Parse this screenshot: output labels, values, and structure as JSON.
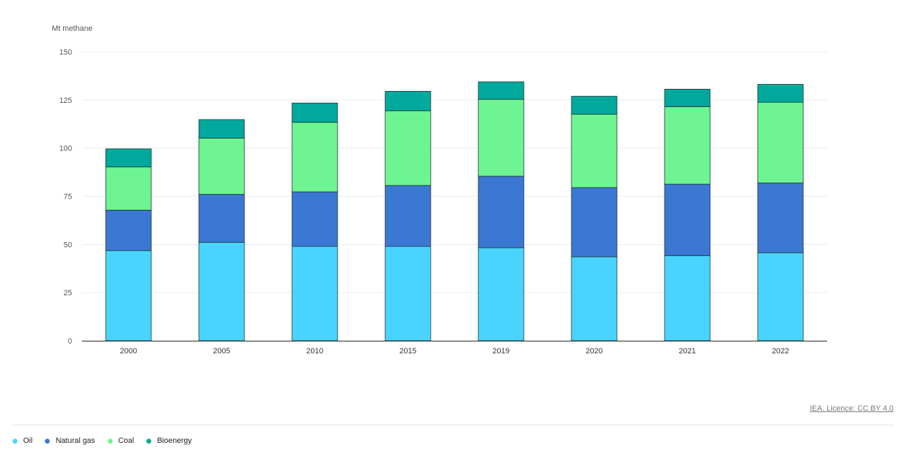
{
  "chart_data": {
    "type": "bar",
    "stacked": true,
    "title": "",
    "xlabel": "",
    "ylabel": "Mt methane",
    "ylim": [
      0,
      150
    ],
    "yticks": [
      0,
      25,
      50,
      75,
      100,
      125,
      150
    ],
    "grid": true,
    "legend_position": "bottom-left",
    "categories": [
      "2000",
      "2005",
      "2010",
      "2015",
      "2019",
      "2020",
      "2021",
      "2022"
    ],
    "series": [
      {
        "name": "Oil",
        "color": "#48d4ff",
        "values": [
          46.8,
          51.1,
          49.0,
          49.0,
          48.3,
          43.6,
          44.2,
          45.7
        ]
      },
      {
        "name": "Natural gas",
        "color": "#3b78d4",
        "values": [
          21.0,
          24.9,
          28.3,
          31.6,
          37.1,
          35.9,
          37.1,
          36.2
        ]
      },
      {
        "name": "Coal",
        "color": "#6ef591",
        "values": [
          22.4,
          29.2,
          36.1,
          38.8,
          39.9,
          38.1,
          40.2,
          41.9
        ]
      },
      {
        "name": "Bioenergy",
        "color": "#00a99b",
        "values": [
          9.4,
          9.6,
          10.0,
          10.1,
          9.1,
          9.3,
          9.1,
          9.3
        ]
      }
    ]
  },
  "credit": "IEA. Licence: CC BY 4.0"
}
